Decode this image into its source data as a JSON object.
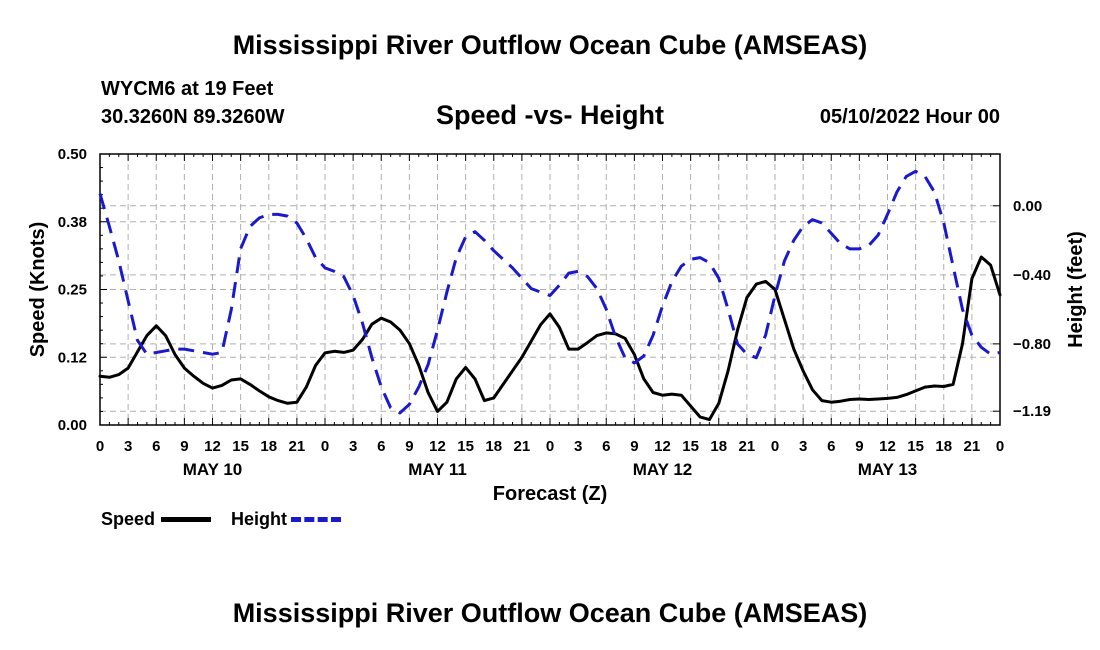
{
  "page": {
    "title_top": "Mississippi River Outflow Ocean Cube (AMSEAS)",
    "title_bottom": "Mississippi River Outflow Ocean Cube (AMSEAS)",
    "station": "WYCM6 at 19 Feet",
    "coords": "30.3260N  89.3260W",
    "date": "05/10/2022 Hour 00"
  },
  "chart_data": {
    "type": "line",
    "title": "Speed -vs- Height",
    "xlabel": "Forecast (Z)",
    "ylabel_left": "Speed (Knots)",
    "ylabel_right": "Height (feet)",
    "x_range": [
      0,
      96
    ],
    "ylim_left": [
      0,
      0.5
    ],
    "ylim_right": [
      -1.27,
      0.3
    ],
    "grid": true,
    "y_ticks_left": [
      0.0,
      0.125,
      0.25,
      0.375,
      0.5
    ],
    "y_tick_labels_left": [
      "0.00",
      "0.12",
      "0.25",
      "0.38",
      "0.50"
    ],
    "y_ticks_right": [
      0.0,
      -0.4,
      -0.8,
      -1.19
    ],
    "y_tick_labels_right": [
      "0.00",
      "−0.40",
      "−0.80",
      "−1.19"
    ],
    "x_ticks": [
      0,
      3,
      6,
      9,
      12,
      15,
      18,
      21,
      24,
      27,
      30,
      33,
      36,
      39,
      42,
      45,
      48,
      51,
      54,
      57,
      60,
      63,
      66,
      69,
      72,
      75,
      78,
      81,
      84,
      87,
      90,
      93,
      96
    ],
    "x_tick_labels": [
      "0",
      "3",
      "6",
      "9",
      "12",
      "15",
      "18",
      "21",
      "0",
      "3",
      "6",
      "9",
      "12",
      "15",
      "18",
      "21",
      "0",
      "3",
      "6",
      "9",
      "12",
      "15",
      "18",
      "21",
      "0",
      "3",
      "6",
      "9",
      "12",
      "15",
      "18",
      "21",
      "0"
    ],
    "day_labels": [
      {
        "x": 12,
        "label": "MAY 10"
      },
      {
        "x": 36,
        "label": "MAY 11"
      },
      {
        "x": 60,
        "label": "MAY 12"
      },
      {
        "x": 84,
        "label": "MAY 13"
      }
    ],
    "series": [
      {
        "name": "Speed",
        "axis": "left",
        "color": "#000000",
        "dash": false,
        "x": [
          0,
          1,
          2,
          3,
          4,
          5,
          6,
          7,
          8,
          9,
          10,
          11,
          12,
          13,
          14,
          15,
          16,
          17,
          18,
          19,
          20,
          21,
          22,
          23,
          24,
          25,
          26,
          27,
          28,
          29,
          30,
          31,
          32,
          33,
          34,
          35,
          36,
          37,
          38,
          39,
          40,
          41,
          42,
          43,
          44,
          45,
          46,
          47,
          48,
          49,
          50,
          51,
          52,
          53,
          54,
          55,
          56,
          57,
          58,
          59,
          60,
          61,
          62,
          63,
          64,
          65,
          66,
          67,
          68,
          69,
          70,
          71,
          72,
          73,
          74,
          75,
          76,
          77,
          78,
          79,
          80,
          81,
          82,
          83,
          84,
          85,
          86,
          87,
          88,
          89,
          90,
          91,
          92,
          93,
          94,
          95,
          96
        ],
        "values": [
          0.09,
          0.088,
          0.093,
          0.105,
          0.135,
          0.165,
          0.183,
          0.165,
          0.13,
          0.105,
          0.09,
          0.077,
          0.068,
          0.073,
          0.083,
          0.085,
          0.075,
          0.063,
          0.052,
          0.045,
          0.04,
          0.042,
          0.07,
          0.11,
          0.133,
          0.136,
          0.134,
          0.138,
          0.158,
          0.186,
          0.197,
          0.19,
          0.175,
          0.15,
          0.11,
          0.06,
          0.025,
          0.042,
          0.085,
          0.106,
          0.085,
          0.045,
          0.05,
          0.075,
          0.1,
          0.125,
          0.155,
          0.185,
          0.205,
          0.18,
          0.14,
          0.14,
          0.152,
          0.165,
          0.17,
          0.168,
          0.16,
          0.13,
          0.085,
          0.06,
          0.055,
          0.057,
          0.055,
          0.035,
          0.015,
          0.01,
          0.04,
          0.1,
          0.175,
          0.235,
          0.26,
          0.265,
          0.25,
          0.195,
          0.14,
          0.1,
          0.065,
          0.045,
          0.042,
          0.044,
          0.047,
          0.048,
          0.047,
          0.048,
          0.049,
          0.051,
          0.056,
          0.063,
          0.07,
          0.072,
          0.071,
          0.075,
          0.15,
          0.27,
          0.31,
          0.295,
          0.24
        ]
      },
      {
        "name": "Height",
        "axis": "right",
        "color": "#1a1acc",
        "dash": true,
        "x": [
          0,
          1,
          2,
          3,
          4,
          5,
          6,
          7,
          8,
          9,
          10,
          11,
          12,
          13,
          14,
          15,
          16,
          17,
          18,
          19,
          20,
          21,
          22,
          23,
          24,
          25,
          26,
          27,
          28,
          29,
          30,
          31,
          32,
          33,
          34,
          35,
          36,
          37,
          38,
          39,
          40,
          41,
          42,
          43,
          44,
          45,
          46,
          47,
          48,
          49,
          50,
          51,
          52,
          53,
          54,
          55,
          56,
          57,
          58,
          59,
          60,
          61,
          62,
          63,
          64,
          65,
          66,
          67,
          68,
          69,
          70,
          71,
          72,
          73,
          74,
          75,
          76,
          77,
          78,
          79,
          80,
          81,
          82,
          83,
          84,
          85,
          86,
          87,
          88,
          89,
          90,
          91,
          92,
          93,
          94,
          95,
          96
        ],
        "values": [
          0.07,
          -0.12,
          -0.32,
          -0.55,
          -0.78,
          -0.86,
          -0.85,
          -0.84,
          -0.83,
          -0.83,
          -0.84,
          -0.85,
          -0.86,
          -0.85,
          -0.6,
          -0.25,
          -0.12,
          -0.07,
          -0.05,
          -0.05,
          -0.06,
          -0.1,
          -0.19,
          -0.3,
          -0.36,
          -0.38,
          -0.41,
          -0.52,
          -0.68,
          -0.88,
          -1.05,
          -1.17,
          -1.2,
          -1.15,
          -1.05,
          -0.92,
          -0.72,
          -0.5,
          -0.3,
          -0.18,
          -0.15,
          -0.2,
          -0.26,
          -0.31,
          -0.36,
          -0.42,
          -0.48,
          -0.5,
          -0.52,
          -0.46,
          -0.39,
          -0.38,
          -0.41,
          -0.48,
          -0.6,
          -0.76,
          -0.88,
          -0.91,
          -0.87,
          -0.75,
          -0.58,
          -0.44,
          -0.35,
          -0.31,
          -0.3,
          -0.33,
          -0.42,
          -0.6,
          -0.8,
          -0.86,
          -0.88,
          -0.75,
          -0.52,
          -0.32,
          -0.2,
          -0.12,
          -0.08,
          -0.1,
          -0.16,
          -0.22,
          -0.25,
          -0.25,
          -0.23,
          -0.17,
          -0.05,
          0.08,
          0.17,
          0.2,
          0.17,
          0.08,
          -0.1,
          -0.35,
          -0.6,
          -0.75,
          -0.82,
          -0.86,
          -0.85
        ]
      }
    ]
  },
  "legend": {
    "speed_label": "Speed",
    "height_label": "Height"
  }
}
